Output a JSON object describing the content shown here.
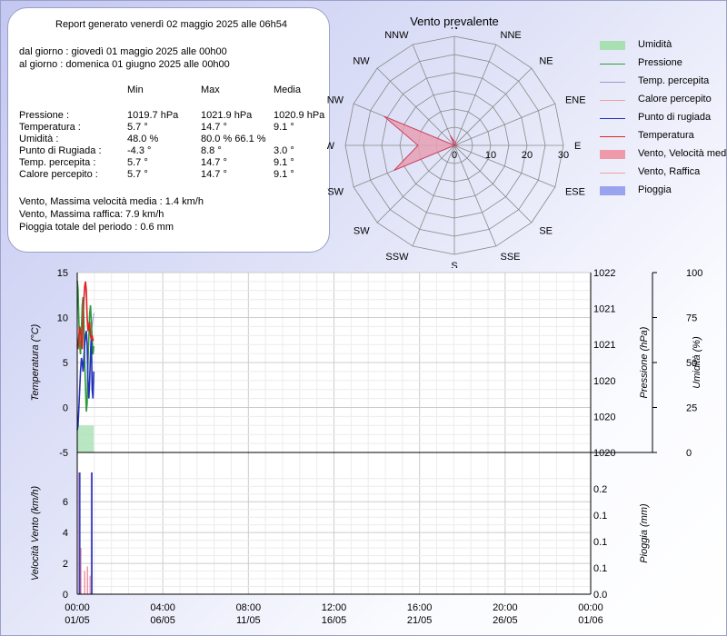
{
  "report": {
    "header": "Report generato venerdì 02 maggio 2025 alle 06h54",
    "from": "dal giorno : giovedì 01 maggio 2025 alle 00h00",
    "to": "al giorno : domenica 01 giugno 2025 alle 00h00",
    "col_min": "Min",
    "col_max": "Max",
    "col_avg": "Media",
    "rows": [
      {
        "label": "Pressione :",
        "min": "1019.7 hPa",
        "max": "1021.9 hPa",
        "avg": "1020.9 hPa"
      },
      {
        "label": "Temperatura :",
        "min": "5.7 °",
        "max": "14.7 °",
        "avg": "9.1 °"
      },
      {
        "label": "Umidità :",
        "min": "48.0 %",
        "max": "80.0 %  66.1 %",
        "avg": ""
      },
      {
        "label": "Punto di Rugiada :",
        "min": "-4.3 °",
        "max": "8.8 °",
        "avg": "3.0 °"
      },
      {
        "label": "Temp. percepita :",
        "min": "5.7 °",
        "max": "14.7 °",
        "avg": "9.1 °"
      },
      {
        "label": "Calore percepito :",
        "min": "5.7 °",
        "max": "14.7 °",
        "avg": "9.1 °"
      }
    ],
    "wind_avg": "Vento, Massima velocità media : 1.4 km/h",
    "wind_gust": "Vento, Massima raffica: 7.9 km/h",
    "rain": "Pioggia totale del periodo : 0.6 mm"
  },
  "legend": [
    {
      "label": "Umidità",
      "color": "#a8e0b4",
      "kind": "fill"
    },
    {
      "label": "Pressione",
      "color": "#2e9a3c",
      "kind": "line"
    },
    {
      "label": "Temp. percepita",
      "color": "#9999cc",
      "kind": "line"
    },
    {
      "label": "Calore percepito",
      "color": "#f0a0a0",
      "kind": "line"
    },
    {
      "label": "Punto di rugiada",
      "color": "#2233bb",
      "kind": "line"
    },
    {
      "label": "Temperatura",
      "color": "#dd2222",
      "kind": "line"
    },
    {
      "label": "Vento, Velocità media",
      "color": "#ee9aa8",
      "kind": "fill"
    },
    {
      "label": "Vento, Raffica",
      "color": "#f0a0a0",
      "kind": "line"
    },
    {
      "label": "Pioggia",
      "color": "#9aa4ee",
      "kind": "fill"
    }
  ],
  "chart_data": [
    {
      "type": "radar",
      "title": "Vento prevalente",
      "directions": [
        "N",
        "NNE",
        "NE",
        "ENE",
        "E",
        "ESE",
        "SE",
        "SSE",
        "S",
        "SSW",
        "SW",
        "WSW",
        "W",
        "WNW",
        "NW",
        "NNW"
      ],
      "values": [
        1,
        1,
        0,
        0,
        1,
        0,
        0,
        0,
        0,
        0,
        0,
        18,
        10,
        21,
        0,
        3
      ],
      "r_ticks": [
        "0",
        "10",
        "20",
        "30"
      ],
      "r_max": 30,
      "color": "#e6a0b4"
    },
    {
      "type": "line",
      "x_ticks": [
        "00:00\n01/05",
        "04:00\n06/05",
        "08:00\n11/05",
        "12:00\n16/05",
        "16:00\n21/05",
        "20:00\n26/05",
        "00:00\n01/06"
      ],
      "x_range_days": [
        0,
        31
      ],
      "left_axis": {
        "label": "Temperatura (°C)",
        "ticks": [
          "15",
          "10",
          "5",
          "0",
          "-5"
        ],
        "range": [
          -5,
          15
        ]
      },
      "right_axis_1": {
        "label": "Pressione (hPa)",
        "ticks": [
          "1022",
          "1021",
          "1021",
          "1020",
          "1020",
          "1020"
        ],
        "range": [
          1019.7,
          1021.9
        ]
      },
      "right_axis_2": {
        "label": "Umidità (%)",
        "ticks": [
          "100",
          "75",
          "50",
          "25",
          "0"
        ],
        "range": [
          0,
          100
        ]
      },
      "series": [
        {
          "name": "Temperatura",
          "color": "#dd2222",
          "x": [
            0,
            0.05,
            0.1,
            0.15,
            0.2,
            0.25,
            0.3,
            0.35,
            0.4,
            0.45,
            0.5,
            0.55,
            0.6,
            0.65,
            0.7,
            0.75,
            0.8,
            0.85,
            0.9,
            0.95,
            1.0
          ],
          "y": [
            7,
            6.5,
            8,
            9,
            8.5,
            7,
            6.5,
            10,
            12,
            13.5,
            14,
            13,
            10,
            8.5,
            9,
            9.5,
            8,
            7.5,
            8,
            7.5,
            7.5
          ]
        },
        {
          "name": "Punto di rugiada",
          "color": "#2233bb",
          "x": [
            0,
            0.05,
            0.1,
            0.15,
            0.2,
            0.25,
            0.3,
            0.35,
            0.4,
            0.45,
            0.5,
            0.55,
            0.6,
            0.65,
            0.7,
            0.75,
            0.8,
            0.85,
            0.9,
            0.95,
            1.0
          ],
          "y": [
            -2.5,
            -2,
            0,
            2,
            4,
            5.5,
            5,
            4,
            5.5,
            7,
            8,
            8.5,
            7,
            3,
            1,
            3,
            6,
            8,
            2,
            1,
            4
          ]
        },
        {
          "name": "Pressione",
          "color": "#2e9a3c",
          "x": [
            0,
            0.05,
            0.1,
            0.15,
            0.2,
            0.25,
            0.3,
            0.35,
            0.4,
            0.45,
            0.5,
            0.55,
            0.6,
            0.65,
            0.7,
            0.75,
            0.8,
            0.85,
            0.9,
            0.95,
            1.0
          ],
          "y": [
            1021.8,
            1021.7,
            1021.3,
            1021.0,
            1020.9,
            1021.2,
            1021.5,
            1021.6,
            1021.3,
            1020.8,
            1020.5,
            1020.2,
            1020.3,
            1020.8,
            1021.1,
            1021.4,
            1021.5,
            1021.3,
            1021.1,
            1020.9,
            1021.0
          ]
        },
        {
          "name": "Temp. percepita",
          "color": "#9999cc",
          "x": [
            0,
            0.1,
            0.2,
            0.3,
            0.4,
            0.5,
            0.6,
            0.7,
            0.8,
            0.9,
            1.0
          ],
          "y": [
            7,
            8,
            8.5,
            6.5,
            12,
            14,
            10,
            9,
            8,
            9,
            10.5
          ]
        }
      ],
      "humidity": {
        "name": "Umidità",
        "color": "#a8e0b4",
        "x": [
          0,
          1.0
        ],
        "y": [
          15,
          15
        ]
      }
    },
    {
      "type": "bar",
      "left_axis": {
        "label": "Velocità Vento (km/h)",
        "ticks": [
          "6",
          "4",
          "2",
          "0"
        ],
        "range": [
          0,
          7.9
        ]
      },
      "right_axis": {
        "label": "Pioggia (mm)",
        "ticks": [
          "0.2",
          "0.1",
          "0.1",
          "0.1",
          "0.0"
        ],
        "range": [
          0,
          0.25
        ]
      },
      "series": [
        {
          "name": "Vento, Raffica",
          "color": "#ee8fa0",
          "x": [
            0.1,
            0.22,
            0.45,
            0.62,
            0.78,
            0.85
          ],
          "y": [
            7.9,
            3,
            1.5,
            1.8,
            1.2,
            7.9
          ]
        },
        {
          "name": "Pioggia",
          "color": "#3344cc",
          "x": [
            0.15,
            0.88
          ],
          "y": [
            0.25,
            0.25
          ]
        }
      ]
    }
  ]
}
